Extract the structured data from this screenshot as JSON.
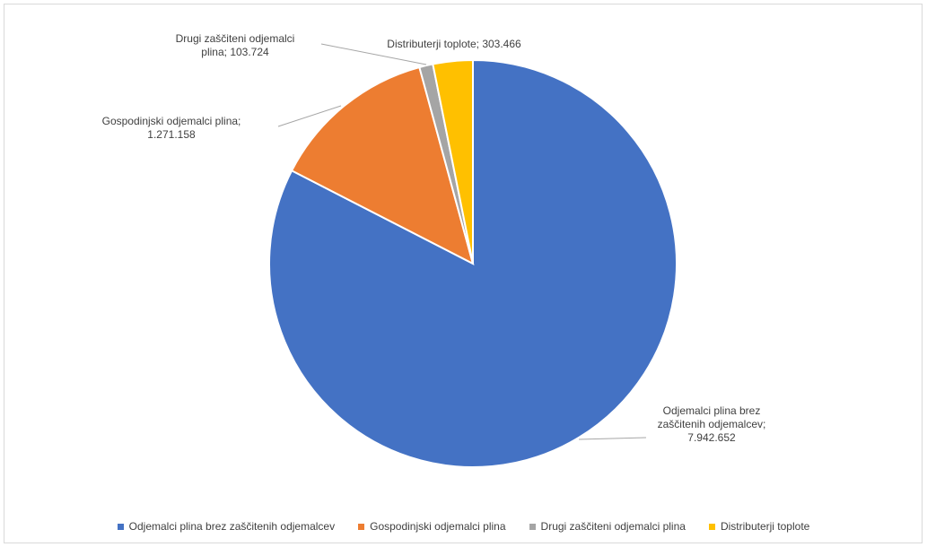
{
  "chart_data": {
    "type": "pie",
    "title": "",
    "slices": [
      {
        "name": "Odjemalci plina brez zaščitenih odjemalcev",
        "value": 7942652,
        "value_label": "7.942.652",
        "label_lines": [
          "Odjemalci plina brez",
          "zaščitenih odjemalcev;",
          "7.942.652"
        ],
        "color": "#4472C4"
      },
      {
        "name": "Gospodinjski odjemalci plina",
        "value": 1271158,
        "value_label": "1.271.158",
        "label_lines": [
          "Gospodinjski odjemalci plina;",
          "1.271.158"
        ],
        "color": "#ED7D31"
      },
      {
        "name": "Drugi zaščiteni odjemalci plina",
        "value": 103724,
        "value_label": "103.724",
        "label_lines": [
          "Drugi zaščiteni odjemalci",
          "plina; 103.724"
        ],
        "color": "#A5A5A5"
      },
      {
        "name": "Distributerji toplote",
        "value": 303466,
        "value_label": "303.466",
        "label_lines": [
          "Distributerji toplote; 303.466"
        ],
        "color": "#FFC000"
      }
    ],
    "legend_position": "bottom",
    "start_angle": "12 o'clock",
    "direction": "clockwise"
  }
}
